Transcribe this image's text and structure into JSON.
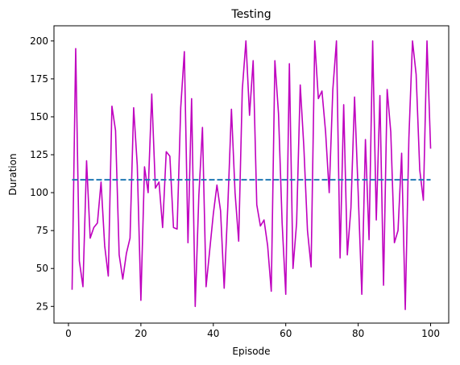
{
  "chart_data": {
    "type": "line",
    "title": "Testing",
    "xlabel": "Episode",
    "ylabel": "Duration",
    "xlim": [
      -4,
      105
    ],
    "ylim": [
      14,
      210
    ],
    "xticks": [
      0,
      20,
      40,
      60,
      80,
      100
    ],
    "yticks": [
      25,
      50,
      75,
      100,
      125,
      150,
      175,
      200
    ],
    "grid": false,
    "legend": "none",
    "series": [
      {
        "style": "solid",
        "color": "#bf00bf",
        "x": [
          1,
          2,
          3,
          4,
          5,
          6,
          7,
          8,
          9,
          10,
          11,
          12,
          13,
          14,
          15,
          16,
          17,
          18,
          19,
          20,
          21,
          22,
          23,
          24,
          25,
          26,
          27,
          28,
          29,
          30,
          31,
          32,
          33,
          34,
          35,
          36,
          37,
          38,
          39,
          40,
          41,
          42,
          43,
          44,
          45,
          46,
          47,
          48,
          49,
          50,
          51,
          52,
          53,
          54,
          55,
          56,
          57,
          58,
          59,
          60,
          61,
          62,
          63,
          64,
          65,
          66,
          67,
          68,
          69,
          70,
          71,
          72,
          73,
          74,
          75,
          76,
          77,
          78,
          79,
          80,
          81,
          82,
          83,
          84,
          85,
          86,
          87,
          88,
          89,
          90,
          91,
          92,
          93,
          94,
          95,
          96,
          97,
          98,
          99,
          100
        ],
        "y": [
          36,
          195,
          55,
          38,
          121,
          70,
          77,
          80,
          107,
          65,
          45,
          157,
          141,
          59,
          43,
          60,
          70,
          156,
          118,
          29,
          117,
          100,
          165,
          103,
          107,
          77,
          127,
          124,
          77,
          76,
          156,
          193,
          67,
          162,
          25,
          98,
          143,
          38,
          62,
          86,
          105,
          88,
          37,
          91,
          155,
          100,
          68,
          168,
          200,
          151,
          187,
          92,
          78,
          82,
          65,
          35,
          187,
          152,
          80,
          33,
          185,
          50,
          80,
          171,
          130,
          75,
          51,
          200,
          162,
          167,
          140,
          100,
          168,
          200,
          57,
          158,
          59,
          90,
          163,
          100,
          33,
          135,
          69,
          200,
          82,
          164,
          39,
          168,
          140,
          67,
          75,
          126,
          23,
          136,
          200,
          178,
          115,
          95,
          200,
          129
        ]
      },
      {
        "style": "dashed",
        "color": "#1f77b4",
        "x": [
          1,
          100
        ],
        "y": [
          108.5,
          108.5
        ]
      }
    ]
  }
}
